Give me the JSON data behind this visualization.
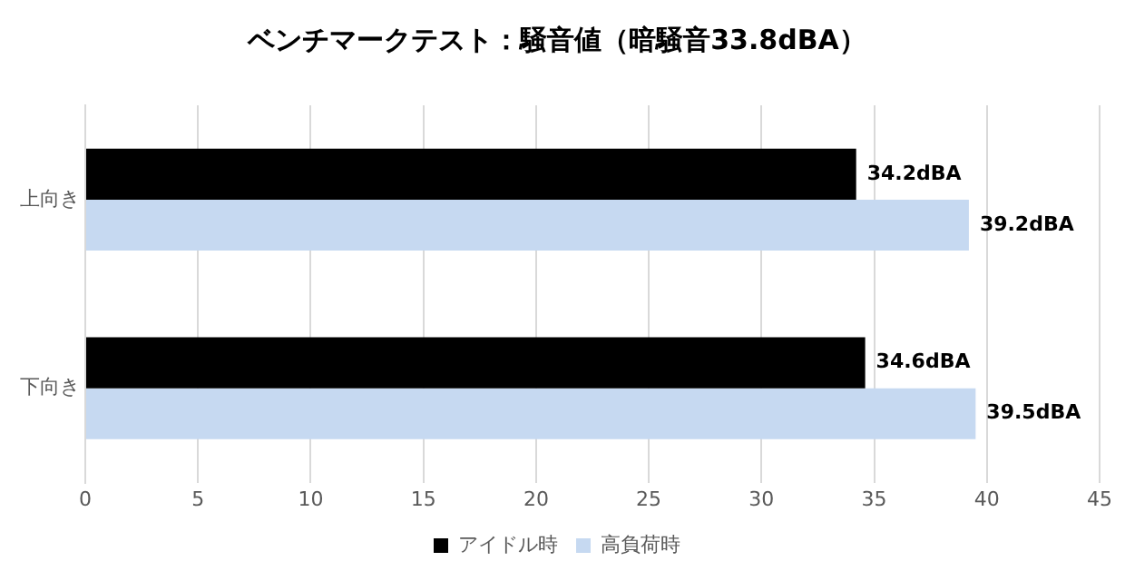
{
  "chart_data": {
    "type": "bar",
    "orientation": "horizontal",
    "title": "ベンチマークテスト：騒音値（暗騒音33.8dBA）",
    "categories": [
      "上向き",
      "下向き"
    ],
    "series": [
      {
        "name": "アイドル時",
        "color": "#000000",
        "values": [
          34.2,
          34.6
        ],
        "value_labels": [
          "34.2dBA",
          "34.6dBA"
        ]
      },
      {
        "name": "高負荷時",
        "color": "#c6d9f1",
        "values": [
          39.2,
          39.5
        ],
        "value_labels": [
          "39.2dBA",
          "39.5dBA"
        ]
      }
    ],
    "xlim": [
      0,
      45
    ],
    "xticks": [
      0,
      5,
      10,
      15,
      20,
      25,
      30,
      35,
      40,
      45
    ],
    "grid": "x",
    "legend": "bottom"
  }
}
